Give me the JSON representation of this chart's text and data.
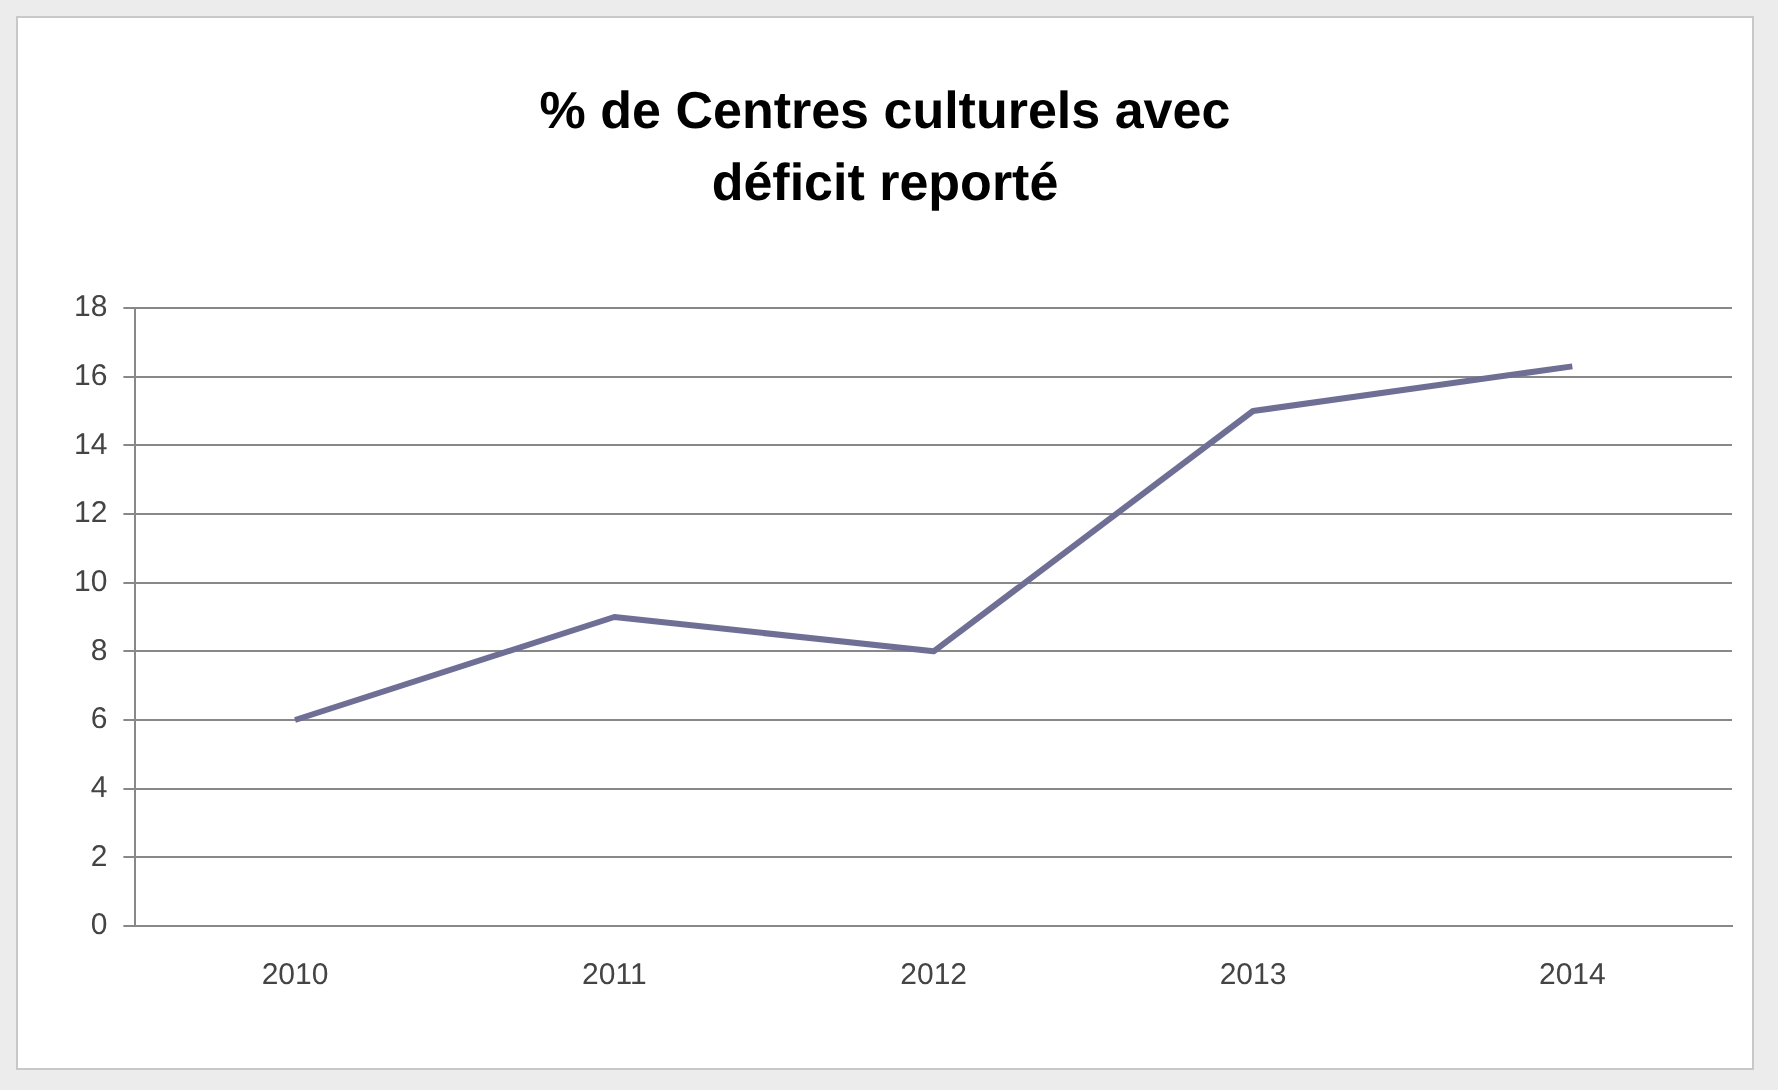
{
  "chart_data": {
    "type": "line",
    "title": "% de Centres culturels avec déficit reporté",
    "categories": [
      "2010",
      "2011",
      "2012",
      "2013",
      "2014"
    ],
    "series": [
      {
        "color": "#6f6f96",
        "values": [
          6,
          9,
          8,
          15,
          16.3
        ]
      }
    ],
    "ylim": [
      0,
      18
    ],
    "yticks": [
      0,
      2,
      4,
      6,
      8,
      10,
      12,
      14,
      16,
      18
    ],
    "grid": "y",
    "legend": false,
    "marker": "none",
    "line_style": "solid"
  }
}
